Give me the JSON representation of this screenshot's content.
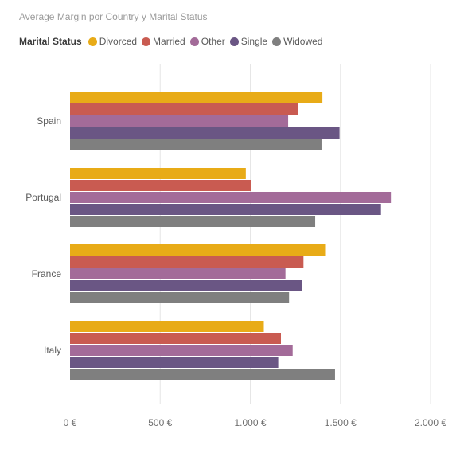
{
  "chart_data": {
    "type": "bar",
    "orientation": "horizontal",
    "title": "Average Margin por Country y Marital Status",
    "legend_title": "Marital Status",
    "legend_position": "top-left",
    "categories": [
      "Spain",
      "Portugal",
      "France",
      "Italy"
    ],
    "series": [
      {
        "name": "Divorced",
        "color": "#E8AB17",
        "values": [
          1400,
          975,
          1415,
          1075
        ]
      },
      {
        "name": "Married",
        "color": "#C95B51",
        "values": [
          1265,
          1005,
          1295,
          1170
        ]
      },
      {
        "name": "Other",
        "color": "#A36B99",
        "values": [
          1210,
          1780,
          1195,
          1235
        ]
      },
      {
        "name": "Single",
        "color": "#6A5684",
        "values": [
          1495,
          1725,
          1285,
          1155
        ]
      },
      {
        "name": "Widowed",
        "color": "#7F7F7F",
        "values": [
          1395,
          1360,
          1215,
          1470
        ]
      }
    ],
    "xlim": [
      0,
      2000
    ],
    "x_ticks": [
      0,
      500,
      1000,
      1500,
      2000
    ],
    "x_tick_labels": [
      "0 €",
      "500 €",
      "1.000 €",
      "1.500 €",
      "2.000 €"
    ],
    "xlabel": "",
    "ylabel": "",
    "grid": "vertical"
  }
}
